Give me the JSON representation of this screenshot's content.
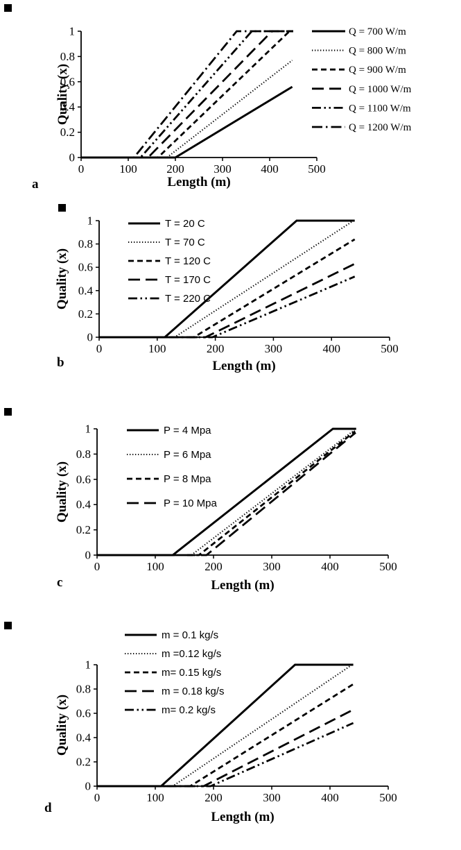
{
  "figure": {
    "background": "#ffffff",
    "line_color": "#000000",
    "panels": [
      "a",
      "b",
      "c",
      "d"
    ]
  },
  "chart_data": [
    {
      "id": "a",
      "type": "line",
      "panel_label": "a",
      "xlabel": "Length (m)",
      "ylabel": "Quality (x)",
      "xlim": [
        0,
        500
      ],
      "ylim": [
        0,
        1
      ],
      "xticks": [
        0,
        100,
        200,
        300,
        400,
        500
      ],
      "yticks": [
        0,
        0.2,
        0.4,
        0.6,
        0.8,
        1
      ],
      "grid": false,
      "legend_position": "outside-right",
      "series": [
        {
          "name": "Q = 700 W/m",
          "line_style": "solid",
          "points": [
            [
              0,
              0
            ],
            [
              200,
              0
            ],
            [
              448,
              0.56
            ]
          ]
        },
        {
          "name": "Q = 800 W/m",
          "line_style": "dotted",
          "points": [
            [
              0,
              0
            ],
            [
              182,
              0
            ],
            [
              448,
              0.77
            ]
          ]
        },
        {
          "name": "Q = 900 W/m",
          "line_style": "dash",
          "points": [
            [
              0,
              0
            ],
            [
              163,
              0
            ],
            [
              442,
              1
            ],
            [
              450,
              1
            ]
          ]
        },
        {
          "name": "Q = 1000 W/m",
          "line_style": "longdash",
          "points": [
            [
              0,
              0
            ],
            [
              142,
              0
            ],
            [
              405,
              1
            ],
            [
              450,
              1
            ]
          ]
        },
        {
          "name": "Q = 1100 W/m",
          "line_style": "dashdotdot",
          "points": [
            [
              0,
              0
            ],
            [
              126,
              0
            ],
            [
              362,
              1
            ],
            [
              450,
              1
            ]
          ]
        },
        {
          "name": "Q = 1200 W/m",
          "line_style": "dashdot",
          "points": [
            [
              0,
              0
            ],
            [
              112,
              0
            ],
            [
              330,
              1
            ],
            [
              450,
              1
            ]
          ]
        }
      ]
    },
    {
      "id": "b",
      "type": "line",
      "panel_label": "b",
      "xlabel": "Length (m)",
      "ylabel": "Quality (x)",
      "xlim": [
        0,
        500
      ],
      "ylim": [
        0,
        1
      ],
      "xticks": [
        0,
        100,
        200,
        300,
        400,
        500
      ],
      "yticks": [
        0,
        0.2,
        0.4,
        0.6,
        0.8,
        1
      ],
      "grid": false,
      "legend_position": "inside-top-left",
      "series": [
        {
          "name": "T = 20 C",
          "line_style": "solid",
          "points": [
            [
              0,
              0
            ],
            [
              113,
              0
            ],
            [
              340,
              1
            ],
            [
              440,
              1
            ]
          ]
        },
        {
          "name": "T = 70 C",
          "line_style": "dotted",
          "points": [
            [
              0,
              0
            ],
            [
              130,
              0
            ],
            [
              438,
              1
            ],
            [
              440,
              1
            ]
          ]
        },
        {
          "name": "T = 120 C",
          "line_style": "dash",
          "points": [
            [
              0,
              0
            ],
            [
              163,
              0
            ],
            [
              440,
              0.84
            ]
          ]
        },
        {
          "name": "T = 170 C",
          "line_style": "longdash",
          "points": [
            [
              0,
              0
            ],
            [
              183,
              0
            ],
            [
              440,
              0.63
            ]
          ]
        },
        {
          "name": "T = 220 C",
          "line_style": "dashdotdot",
          "points": [
            [
              0,
              0
            ],
            [
              195,
              0
            ],
            [
              440,
              0.52
            ]
          ]
        }
      ]
    },
    {
      "id": "c",
      "type": "line",
      "panel_label": "c",
      "xlabel": "Length (m)",
      "ylabel": "Quality (x)",
      "xlim": [
        0,
        500
      ],
      "ylim": [
        0,
        1
      ],
      "xticks": [
        0,
        100,
        200,
        300,
        400,
        500
      ],
      "yticks": [
        0,
        0.2,
        0.4,
        0.6,
        0.8,
        1
      ],
      "grid": false,
      "legend_position": "inside-top-left",
      "series": [
        {
          "name": "P = 4 Mpa",
          "line_style": "solid",
          "points": [
            [
              0,
              0
            ],
            [
              130,
              0
            ],
            [
              405,
              1
            ],
            [
              445,
              1
            ]
          ]
        },
        {
          "name": "P = 6 Mpa",
          "line_style": "dotted",
          "points": [
            [
              0,
              0
            ],
            [
              162,
              0
            ],
            [
              442,
              0.99
            ]
          ]
        },
        {
          "name": "P = 8 Mpa",
          "line_style": "dash",
          "points": [
            [
              0,
              0
            ],
            [
              175,
              0
            ],
            [
              443,
              0.98
            ]
          ]
        },
        {
          "name": "P = 10 Mpa",
          "line_style": "longdash",
          "points": [
            [
              0,
              0
            ],
            [
              188,
              0
            ],
            [
              444,
              0.97
            ]
          ]
        }
      ]
    },
    {
      "id": "d",
      "type": "line",
      "panel_label": "d",
      "xlabel": "Length (m)",
      "ylabel": "Quality (x)",
      "xlim": [
        0,
        500
      ],
      "ylim": [
        0,
        1
      ],
      "xticks": [
        0,
        100,
        200,
        300,
        400,
        500
      ],
      "yticks": [
        0,
        0.2,
        0.4,
        0.6,
        0.8,
        1
      ],
      "grid": false,
      "legend_position": "inside-top-left",
      "series": [
        {
          "name": "m = 0.1 kg/s",
          "line_style": "solid",
          "points": [
            [
              0,
              0
            ],
            [
              110,
              0
            ],
            [
              340,
              1
            ],
            [
              440,
              1
            ]
          ]
        },
        {
          "name": "m =0.12 kg/s",
          "line_style": "dotted",
          "points": [
            [
              0,
              0
            ],
            [
              130,
              0
            ],
            [
              438,
              1
            ],
            [
              440,
              1
            ]
          ]
        },
        {
          "name": "m= 0.15 kg/s",
          "line_style": "dash",
          "points": [
            [
              0,
              0
            ],
            [
              160,
              0
            ],
            [
              440,
              0.84
            ]
          ]
        },
        {
          "name": "m = 0.18 kg/s",
          "line_style": "longdash",
          "points": [
            [
              0,
              0
            ],
            [
              183,
              0
            ],
            [
              440,
              0.63
            ]
          ]
        },
        {
          "name": "m= 0.2 kg/s",
          "line_style": "dashdotdot",
          "points": [
            [
              0,
              0
            ],
            [
              195,
              0
            ],
            [
              440,
              0.52
            ]
          ]
        }
      ]
    }
  ]
}
